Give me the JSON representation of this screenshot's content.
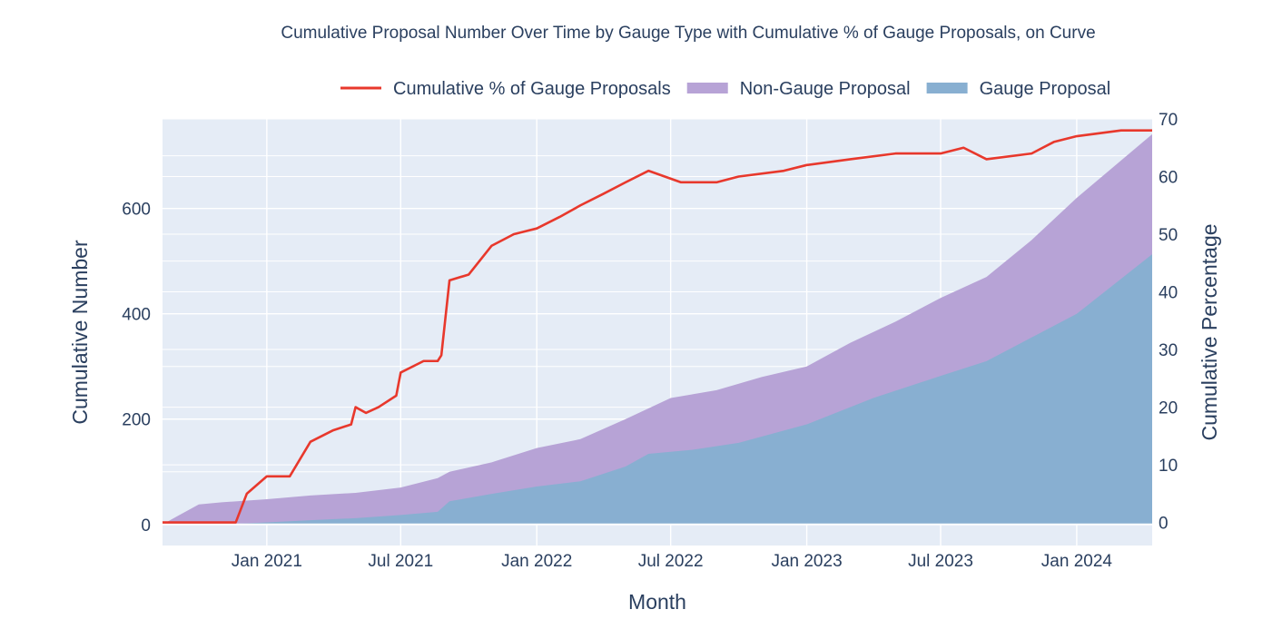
{
  "chart_data": {
    "type": "area",
    "title": "Cumulative Proposal Number Over Time by Gauge Type with Cumulative % of Gauge Proposals, on Curve",
    "xlabel": "Month",
    "ylabel": "Cumulative Number",
    "y2label": "Cumulative Percentage",
    "x_ticks": [
      "Jan 2021",
      "Jul 2021",
      "Jan 2022",
      "Jul 2022",
      "Jan 2023",
      "Jul 2023",
      "Jan 2024"
    ],
    "x_tick_dates": [
      "2021-01-01",
      "2021-07-01",
      "2022-01-01",
      "2022-07-01",
      "2023-01-01",
      "2023-07-01",
      "2024-01-01"
    ],
    "xlim": [
      "2020-08-13",
      "2024-04-12"
    ],
    "ylim": [
      -40,
      770
    ],
    "y_ticks": [
      0,
      200,
      400,
      600
    ],
    "y2lim": [
      -4,
      70
    ],
    "y2_ticks": [
      0,
      10,
      20,
      30,
      40,
      50,
      60,
      70
    ],
    "grid": true,
    "legend_position": "top-right",
    "legend": [
      {
        "name": "Cumulative % of Gauge Proposals",
        "kind": "line",
        "color": "#e8382c"
      },
      {
        "name": "Non-Gauge Proposal",
        "kind": "area",
        "color": "#b7a3d6"
      },
      {
        "name": "Gauge Proposal",
        "kind": "area",
        "color": "#88afd1"
      }
    ],
    "series": [
      {
        "name": "Gauge Proposal",
        "axis": "left",
        "color": "#88afd1",
        "points": [
          [
            "2020-08-13",
            0
          ],
          [
            "2020-10-23",
            0
          ],
          [
            "2020-12-01",
            2
          ],
          [
            "2021-01-01",
            4
          ],
          [
            "2021-03-01",
            8
          ],
          [
            "2021-05-01",
            12
          ],
          [
            "2021-07-01",
            18
          ],
          [
            "2021-08-20",
            24
          ],
          [
            "2021-09-05",
            44
          ],
          [
            "2021-11-01",
            58
          ],
          [
            "2022-01-01",
            72
          ],
          [
            "2022-03-01",
            82
          ],
          [
            "2022-05-01",
            110
          ],
          [
            "2022-06-01",
            134
          ],
          [
            "2022-08-01",
            142
          ],
          [
            "2022-10-01",
            155
          ],
          [
            "2023-01-01",
            190
          ],
          [
            "2023-04-01",
            240
          ],
          [
            "2023-07-01",
            282
          ],
          [
            "2023-09-01",
            310
          ],
          [
            "2023-11-01",
            355
          ],
          [
            "2024-01-01",
            400
          ],
          [
            "2024-04-12",
            513
          ]
        ]
      },
      {
        "name": "Non-Gauge Proposal",
        "axis": "left",
        "color": "#b7a3d6",
        "points": [
          [
            "2020-08-13",
            0
          ],
          [
            "2020-09-01",
            15
          ],
          [
            "2020-10-01",
            38
          ],
          [
            "2020-11-01",
            42
          ],
          [
            "2021-01-01",
            48
          ],
          [
            "2021-03-01",
            55
          ],
          [
            "2021-05-01",
            60
          ],
          [
            "2021-07-01",
            70
          ],
          [
            "2021-08-20",
            88
          ],
          [
            "2021-09-05",
            100
          ],
          [
            "2021-11-01",
            118
          ],
          [
            "2022-01-01",
            145
          ],
          [
            "2022-03-01",
            162
          ],
          [
            "2022-05-01",
            200
          ],
          [
            "2022-07-01",
            240
          ],
          [
            "2022-09-01",
            255
          ],
          [
            "2022-11-01",
            280
          ],
          [
            "2023-01-01",
            300
          ],
          [
            "2023-03-01",
            345
          ],
          [
            "2023-05-01",
            385
          ],
          [
            "2023-07-01",
            430
          ],
          [
            "2023-09-01",
            470
          ],
          [
            "2023-11-01",
            540
          ],
          [
            "2024-01-01",
            620
          ],
          [
            "2024-04-12",
            741
          ]
        ]
      },
      {
        "name": "Cumulative % of Gauge Proposals",
        "axis": "right",
        "color": "#e8382c",
        "points": [
          [
            "2020-08-13",
            0
          ],
          [
            "2020-11-20",
            0
          ],
          [
            "2020-12-05",
            5
          ],
          [
            "2021-01-01",
            8
          ],
          [
            "2021-02-01",
            8
          ],
          [
            "2021-03-01",
            14
          ],
          [
            "2021-04-01",
            16
          ],
          [
            "2021-04-25",
            17
          ],
          [
            "2021-05-01",
            20
          ],
          [
            "2021-05-15",
            19
          ],
          [
            "2021-06-01",
            20
          ],
          [
            "2021-06-25",
            22
          ],
          [
            "2021-07-01",
            26
          ],
          [
            "2021-08-01",
            28
          ],
          [
            "2021-08-20",
            28
          ],
          [
            "2021-08-25",
            29
          ],
          [
            "2021-09-05",
            42
          ],
          [
            "2021-10-01",
            43
          ],
          [
            "2021-11-01",
            48
          ],
          [
            "2021-12-01",
            50
          ],
          [
            "2022-01-01",
            51
          ],
          [
            "2022-02-01",
            53
          ],
          [
            "2022-03-01",
            55
          ],
          [
            "2022-04-01",
            57
          ],
          [
            "2022-05-01",
            59
          ],
          [
            "2022-06-01",
            61
          ],
          [
            "2022-07-15",
            59
          ],
          [
            "2022-09-01",
            59
          ],
          [
            "2022-10-01",
            60
          ],
          [
            "2022-12-01",
            61
          ],
          [
            "2023-01-01",
            62
          ],
          [
            "2023-03-01",
            63
          ],
          [
            "2023-05-01",
            64
          ],
          [
            "2023-07-01",
            64
          ],
          [
            "2023-08-01",
            65
          ],
          [
            "2023-09-01",
            63
          ],
          [
            "2023-11-01",
            64
          ],
          [
            "2023-12-01",
            66
          ],
          [
            "2024-01-01",
            67
          ],
          [
            "2024-03-01",
            68
          ],
          [
            "2024-04-12",
            68
          ]
        ]
      }
    ]
  }
}
